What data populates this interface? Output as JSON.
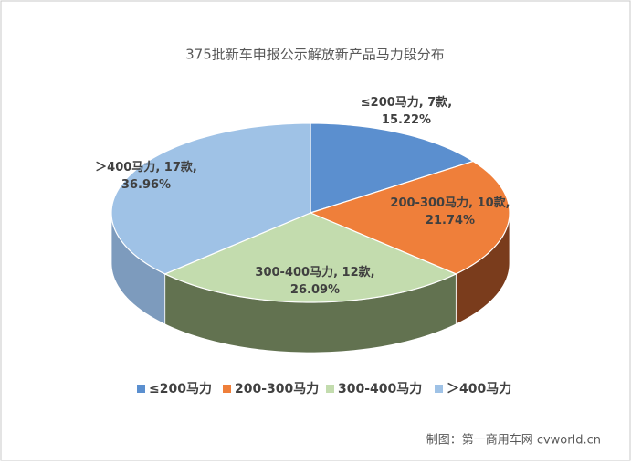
{
  "chart_data": {
    "type": "pie3d",
    "title": "375批新车申报公示解放新产品马力段分布",
    "categories": [
      "≤200马力",
      "200-300马力",
      "300-400马力",
      "＞400马力"
    ],
    "values": [
      15.22,
      21.74,
      26.09,
      36.96
    ],
    "value_labels": [
      "15.22%",
      "21.74%",
      "26.09%",
      "36.96%"
    ],
    "counts": [
      7,
      10,
      12,
      17
    ],
    "count_labels": [
      "7款",
      "10款",
      "12款",
      "17款"
    ],
    "colors": [
      "#5b8fcf",
      "#ef7f3a",
      "#c3dcae",
      "#9fc2e6"
    ],
    "side_colors": [
      "#3f6aa0",
      "#7a3c1c",
      "#627250",
      "#7d9bbd"
    ],
    "legend": "bottom",
    "source": "制图：第一商用车网 cvworld.cn"
  }
}
